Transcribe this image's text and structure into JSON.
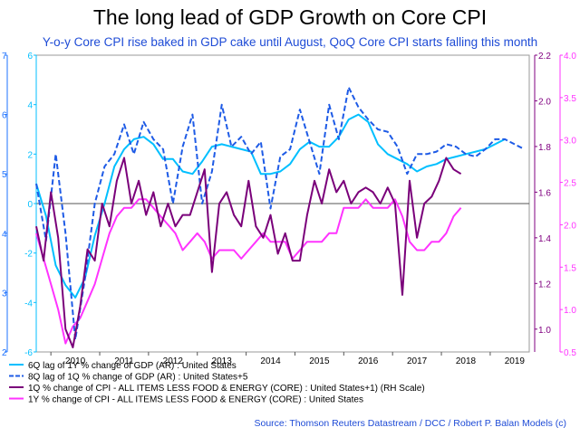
{
  "chart_data": {
    "type": "line",
    "title": "The long lead of GDP Growth on Core CPI",
    "subtitle": "Y-o-y Core CPI rise baked in GDP cake until August, QoQ Core CPI starts falling this month",
    "x_axis": {
      "labels": [
        "2010",
        "2011",
        "2012",
        "2013",
        "2014",
        "2015",
        "2016",
        "2017",
        "2018",
        "2019"
      ],
      "range": [
        2009.7,
        2019.8
      ]
    },
    "left_axes": [
      {
        "name": "inner",
        "color": "#00BFFF",
        "range": [
          -6,
          6
        ],
        "ticks": [
          "-6",
          "-4",
          "-2",
          "0",
          "2",
          "4",
          "6"
        ]
      },
      {
        "name": "outer",
        "color": "#1E73FF",
        "range": [
          2,
          7
        ],
        "ticks": [
          "2",
          "3",
          "4",
          "5",
          "6",
          "7"
        ]
      }
    ],
    "right_axes": [
      {
        "name": "inner",
        "color": "#800080",
        "range": [
          0.9,
          2.2
        ],
        "ticks": [
          "1.0",
          "1.2",
          "1.4",
          "1.6",
          "1.8",
          "2.0",
          "2.2"
        ]
      },
      {
        "name": "outer",
        "color": "#FF33FF",
        "range": [
          0.5,
          4.0
        ],
        "ticks": [
          "0.5",
          "1.0",
          "1.5",
          "2.0",
          "2.5",
          "3.0",
          "3.5",
          "4.0"
        ]
      }
    ],
    "zero_line_y": 0,
    "grid": false,
    "series": [
      {
        "name": "6Q lag of 1Y % change of GDP (AR) : United States",
        "color": "#00BFFF",
        "dash": false,
        "axis": "left-inner",
        "x": [
          2009.7,
          2009.9,
          2010.1,
          2010.3,
          2010.5,
          2010.7,
          2010.9,
          2011.1,
          2011.3,
          2011.5,
          2011.7,
          2011.9,
          2012.1,
          2012.3,
          2012.5,
          2012.7,
          2012.9,
          2013.1,
          2013.3,
          2013.5,
          2013.7,
          2013.9,
          2014.1,
          2014.3,
          2014.5,
          2014.7,
          2014.9,
          2015.1,
          2015.3,
          2015.5,
          2015.7,
          2015.9,
          2016.1,
          2016.3,
          2016.5,
          2016.7,
          2016.9,
          2017.1,
          2017.3,
          2017.5,
          2017.7,
          2017.9,
          2018.1,
          2018.3,
          2018.5,
          2018.7,
          2018.9,
          2019.1,
          2019.3
        ],
        "y": [
          0.8,
          -0.5,
          -2.5,
          -3.3,
          -3.8,
          -3.0,
          -1.3,
          0.0,
          1.5,
          2.2,
          2.6,
          2.7,
          2.4,
          1.8,
          1.8,
          1.3,
          1.2,
          1.7,
          2.3,
          2.4,
          2.3,
          2.2,
          2.1,
          1.2,
          1.2,
          1.3,
          1.6,
          2.2,
          2.5,
          2.3,
          2.3,
          2.7,
          3.4,
          3.6,
          3.3,
          2.4,
          2.0,
          1.8,
          1.6,
          1.3,
          1.5,
          1.6,
          1.8,
          1.9,
          2.0,
          2.1,
          2.2,
          2.4,
          2.6
        ]
      },
      {
        "name": "8Q lag of 1Q % change of GDP (AR) : United States+5",
        "color": "#1E5BE6",
        "dash": true,
        "axis": "left-inner",
        "x": [
          2009.7,
          2009.9,
          2010.1,
          2010.3,
          2010.5,
          2010.7,
          2010.9,
          2011.1,
          2011.3,
          2011.5,
          2011.7,
          2011.9,
          2012.1,
          2012.3,
          2012.5,
          2012.7,
          2012.9,
          2013.1,
          2013.3,
          2013.5,
          2013.7,
          2013.9,
          2014.1,
          2014.3,
          2014.5,
          2014.7,
          2014.9,
          2015.1,
          2015.3,
          2015.5,
          2015.7,
          2015.9,
          2016.1,
          2016.3,
          2016.5,
          2016.7,
          2016.9,
          2017.1,
          2017.3,
          2017.5,
          2017.7,
          2017.9,
          2018.1,
          2018.3,
          2018.5,
          2018.7,
          2018.9,
          2019.1,
          2019.3,
          2019.5,
          2019.7
        ],
        "y": [
          0.8,
          -1.5,
          2.0,
          -1.2,
          -5.5,
          -3.0,
          0.0,
          1.5,
          2.0,
          3.2,
          2.0,
          3.3,
          2.6,
          2.2,
          0.0,
          2.3,
          3.6,
          0.0,
          1.3,
          4.0,
          2.3,
          2.7,
          2.0,
          2.5,
          -0.2,
          1.9,
          2.2,
          3.8,
          2.5,
          1.2,
          4.0,
          2.6,
          4.7,
          3.9,
          3.4,
          3.0,
          2.9,
          2.3,
          1.2,
          2.0,
          2.0,
          2.1,
          2.4,
          2.3,
          2.0,
          1.9,
          2.2,
          2.6,
          2.6,
          2.4,
          2.2
        ]
      },
      {
        "name": "1Q % change of CPI - ALL ITEMS LESS FOOD & ENERGY (CORE) : United States+1) (RH Scale)",
        "color": "#7A007A",
        "dash": false,
        "axis": "right-inner",
        "x": [
          2009.7,
          2009.85,
          2010.0,
          2010.15,
          2010.3,
          2010.45,
          2010.6,
          2010.75,
          2010.9,
          2011.05,
          2011.2,
          2011.35,
          2011.5,
          2011.65,
          2011.8,
          2011.95,
          2012.1,
          2012.25,
          2012.4,
          2012.55,
          2012.7,
          2012.85,
          2013.0,
          2013.15,
          2013.3,
          2013.45,
          2013.6,
          2013.75,
          2013.9,
          2014.05,
          2014.2,
          2014.35,
          2014.5,
          2014.65,
          2014.8,
          2014.95,
          2015.1,
          2015.25,
          2015.4,
          2015.55,
          2015.7,
          2015.85,
          2016.0,
          2016.15,
          2016.3,
          2016.45,
          2016.6,
          2016.75,
          2016.9,
          2017.05,
          2017.2,
          2017.35,
          2017.5,
          2017.65,
          2017.8,
          2017.95,
          2018.1,
          2018.25,
          2018.4
        ],
        "y": [
          1.45,
          1.3,
          1.6,
          1.4,
          1.0,
          0.92,
          1.1,
          1.35,
          1.3,
          1.55,
          1.45,
          1.65,
          1.75,
          1.55,
          1.65,
          1.5,
          1.6,
          1.45,
          1.55,
          1.45,
          1.5,
          1.5,
          1.6,
          1.7,
          1.25,
          1.55,
          1.6,
          1.5,
          1.45,
          1.65,
          1.45,
          1.4,
          1.5,
          1.33,
          1.42,
          1.3,
          1.3,
          1.5,
          1.65,
          1.55,
          1.7,
          1.6,
          1.65,
          1.55,
          1.6,
          1.62,
          1.6,
          1.55,
          1.62,
          1.55,
          1.15,
          1.65,
          1.4,
          1.55,
          1.58,
          1.65,
          1.75,
          1.7,
          1.68
        ]
      },
      {
        "name": "1Y % change of CPI - ALL ITEMS LESS FOOD & ENERGY (CORE) : United States",
        "color": "#FF33FF",
        "dash": false,
        "axis": "right-outer",
        "x": [
          2009.7,
          2009.85,
          2010.0,
          2010.15,
          2010.3,
          2010.45,
          2010.6,
          2010.75,
          2010.9,
          2011.05,
          2011.2,
          2011.35,
          2011.5,
          2011.65,
          2011.8,
          2011.95,
          2012.1,
          2012.25,
          2012.4,
          2012.55,
          2012.7,
          2012.85,
          2013.0,
          2013.15,
          2013.3,
          2013.45,
          2013.6,
          2013.75,
          2013.9,
          2014.05,
          2014.2,
          2014.35,
          2014.5,
          2014.65,
          2014.8,
          2014.95,
          2015.1,
          2015.25,
          2015.4,
          2015.55,
          2015.7,
          2015.85,
          2016.0,
          2016.15,
          2016.3,
          2016.45,
          2016.6,
          2016.75,
          2016.9,
          2017.05,
          2017.2,
          2017.35,
          2017.5,
          2017.65,
          2017.8,
          2017.95,
          2018.1,
          2018.25,
          2018.4
        ],
        "y": [
          1.9,
          1.6,
          1.3,
          1.0,
          0.6,
          0.8,
          0.9,
          1.1,
          1.3,
          1.6,
          1.9,
          2.1,
          2.2,
          2.2,
          2.3,
          2.3,
          2.2,
          2.1,
          2.0,
          1.9,
          1.7,
          1.8,
          1.9,
          1.8,
          1.6,
          1.7,
          1.7,
          1.7,
          1.6,
          1.7,
          1.8,
          1.9,
          1.8,
          1.8,
          1.8,
          1.6,
          1.7,
          1.8,
          1.8,
          1.8,
          1.9,
          1.9,
          2.2,
          2.2,
          2.2,
          2.3,
          2.2,
          2.2,
          2.2,
          2.3,
          2.1,
          1.8,
          1.7,
          1.7,
          1.8,
          1.8,
          1.9,
          2.1,
          2.2
        ]
      }
    ],
    "legend": {
      "placement": "bottom-left",
      "entries": [
        "6Q lag of 1Y % change of GDP (AR) : United States",
        "8Q lag of 1Q % change of GDP (AR) : United States+5",
        "1Q % change of CPI - ALL ITEMS LESS FOOD & ENERGY (CORE) : United States+1) (RH Scale)",
        "1Y % change of CPI - ALL ITEMS LESS FOOD & ENERGY (CORE) : United States"
      ]
    },
    "source": "Source: Thomson Reuters Datastream /  DCC / Robert P. Balan Models (c)",
    "colors": {
      "title": "#000000",
      "subtitle": "#1E4BD6",
      "source": "#1E4BD6"
    }
  }
}
